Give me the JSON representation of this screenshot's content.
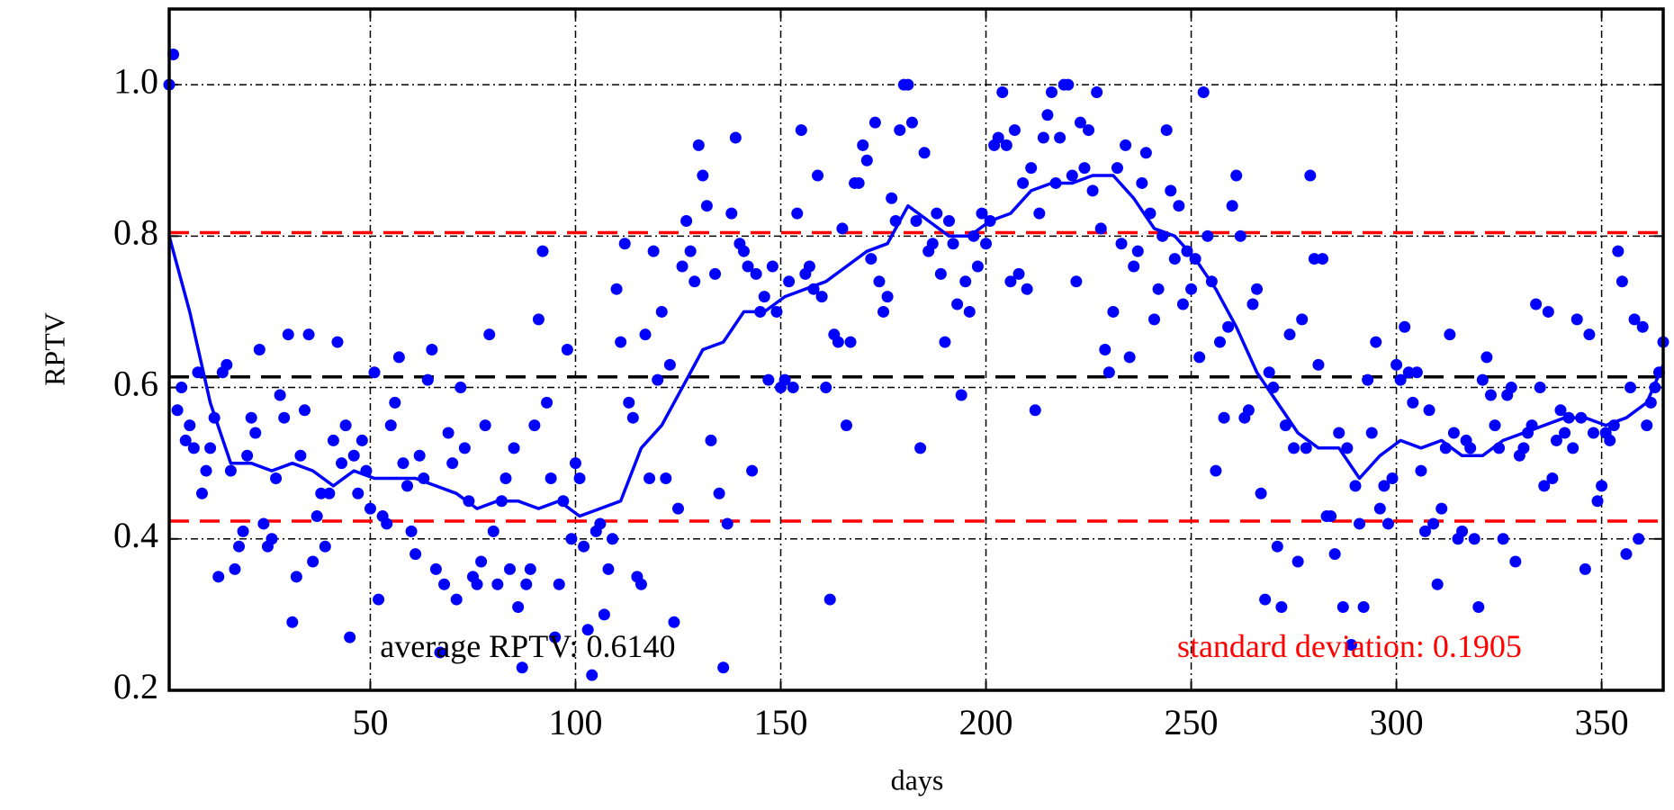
{
  "chart_data": {
    "type": "scatter",
    "xlabel": "days",
    "ylabel": "RPTV",
    "xlim": [
      1,
      365
    ],
    "ylim": [
      0.2,
      1.1
    ],
    "xticks": [
      50,
      100,
      150,
      200,
      250,
      300,
      350
    ],
    "yticks": [
      0.2,
      0.4,
      0.6,
      0.8,
      {
        "value": 1,
        "label": "1.0"
      }
    ],
    "grid": true,
    "points": {
      "color": "#0000ff",
      "x": [
        1,
        2,
        3,
        4,
        5,
        6,
        7,
        8,
        9,
        10,
        11,
        12,
        13,
        14,
        15,
        16,
        17,
        18,
        19,
        20,
        21,
        22,
        23,
        24,
        25,
        26,
        27,
        28,
        29,
        30,
        31,
        32,
        33,
        34,
        35,
        36,
        37,
        38,
        39,
        40,
        41,
        42,
        43,
        44,
        45,
        46,
        47,
        48,
        49,
        50,
        51,
        52,
        53,
        54,
        55,
        56,
        57,
        58,
        59,
        60,
        61,
        62,
        63,
        64,
        65,
        66,
        67,
        68,
        69,
        70,
        71,
        72,
        73,
        74,
        75,
        76,
        77,
        78,
        79,
        80,
        81,
        82,
        83,
        84,
        85,
        86,
        87,
        88,
        89,
        90,
        91,
        92,
        93,
        94,
        95,
        96,
        97,
        98,
        99,
        100,
        101,
        102,
        103,
        104,
        105,
        106,
        107,
        108,
        109,
        110,
        111,
        112,
        113,
        114,
        115,
        116,
        117,
        118,
        119,
        120,
        121,
        122,
        123,
        124,
        125,
        126,
        127,
        128,
        129,
        130,
        131,
        132,
        133,
        134,
        135,
        136,
        137,
        138,
        139,
        140,
        141,
        142,
        143,
        144,
        145,
        146,
        147,
        148,
        149,
        150,
        151,
        152,
        153,
        154,
        155,
        156,
        157,
        158,
        159,
        160,
        161,
        162,
        163,
        164,
        165,
        166,
        167,
        168,
        169,
        170,
        171,
        172,
        173,
        174,
        175,
        176,
        177,
        178,
        179,
        180,
        181,
        182,
        183,
        184,
        185,
        186,
        187,
        188,
        189,
        190,
        191,
        192,
        193,
        194,
        195,
        196,
        197,
        198,
        199,
        200,
        201,
        202,
        203,
        204,
        205,
        206,
        207,
        208,
        209,
        210,
        211,
        212,
        213,
        214,
        215,
        216,
        217,
        218,
        219,
        220,
        221,
        222,
        223,
        224,
        225,
        226,
        227,
        228,
        229,
        230,
        231,
        232,
        233,
        234,
        235,
        236,
        237,
        238,
        239,
        240,
        241,
        242,
        243,
        244,
        245,
        246,
        247,
        248,
        249,
        250,
        251,
        252,
        253,
        254,
        255,
        256,
        257,
        258,
        259,
        260,
        261,
        262,
        263,
        264,
        265,
        266,
        267,
        268,
        269,
        270,
        271,
        272,
        273,
        274,
        275,
        276,
        277,
        278,
        279,
        280,
        281,
        282,
        283,
        284,
        285,
        286,
        287,
        288,
        289,
        290,
        291,
        292,
        293,
        294,
        295,
        296,
        297,
        298,
        299,
        300,
        301,
        302,
        303,
        304,
        305,
        306,
        307,
        308,
        309,
        310,
        311,
        312,
        313,
        314,
        315,
        316,
        317,
        318,
        319,
        320,
        321,
        322,
        323,
        324,
        325,
        326,
        327,
        328,
        329,
        330,
        331,
        332,
        333,
        334,
        335,
        336,
        337,
        338,
        339,
        340,
        341,
        342,
        343,
        344,
        345,
        346,
        347,
        348,
        349,
        350,
        351,
        352,
        353,
        354,
        355,
        356,
        357,
        358,
        359,
        360,
        361,
        362,
        363,
        364,
        365
      ],
      "values": [
        1.0,
        1.04,
        0.57,
        0.6,
        0.53,
        0.55,
        0.52,
        0.62,
        0.46,
        0.49,
        0.52,
        0.56,
        0.35,
        0.62,
        0.63,
        0.49,
        0.36,
        0.39,
        0.41,
        0.51,
        0.56,
        0.54,
        0.65,
        0.42,
        0.39,
        0.4,
        0.48,
        0.59,
        0.56,
        0.67,
        0.29,
        0.35,
        0.51,
        0.57,
        0.67,
        0.37,
        0.43,
        0.46,
        0.39,
        0.46,
        0.53,
        0.66,
        0.5,
        0.55,
        0.27,
        0.51,
        0.46,
        0.53,
        0.49,
        0.44,
        0.62,
        0.32,
        0.43,
        0.42,
        0.55,
        0.58,
        0.64,
        0.5,
        0.47,
        0.41,
        0.38,
        0.51,
        0.48,
        0.61,
        0.65,
        0.36,
        0.25,
        0.34,
        0.54,
        0.5,
        0.32,
        0.6,
        0.52,
        0.45,
        0.35,
        0.34,
        0.37,
        0.55,
        0.67,
        0.41,
        0.34,
        0.45,
        0.48,
        0.36,
        0.52,
        0.31,
        0.23,
        0.34,
        0.36,
        0.55,
        0.69,
        0.78,
        0.58,
        0.48,
        0.27,
        0.34,
        0.45,
        0.65,
        0.4,
        0.5,
        0.48,
        0.39,
        0.28,
        0.22,
        0.41,
        0.42,
        0.3,
        0.36,
        0.4,
        0.73,
        0.66,
        0.79,
        0.58,
        0.56,
        0.35,
        0.34,
        0.67,
        0.48,
        0.78,
        0.61,
        0.7,
        0.48,
        0.63,
        0.29,
        0.44,
        0.76,
        0.82,
        0.78,
        0.74,
        0.92,
        0.88,
        0.84,
        0.53,
        0.75,
        0.46,
        0.23,
        0.42,
        0.83,
        0.93,
        0.79,
        0.78,
        0.76,
        0.49,
        0.75,
        0.7,
        0.72,
        0.61,
        0.76,
        0.7,
        0.6,
        0.61,
        0.74,
        0.6,
        0.83,
        0.94,
        0.75,
        0.76,
        0.73,
        0.88,
        0.72,
        0.6,
        0.32,
        0.67,
        0.66,
        0.81,
        0.55,
        0.66,
        0.87,
        0.87,
        0.92,
        0.9,
        0.77,
        0.95,
        0.74,
        0.7,
        0.72,
        0.85,
        0.82,
        0.94,
        1.0,
        1.0,
        0.95,
        0.82,
        0.52,
        0.91,
        0.78,
        0.79,
        0.83,
        0.75,
        0.66,
        0.82,
        0.79,
        0.71,
        0.59,
        0.74,
        0.7,
        0.8,
        0.76,
        0.83,
        0.79,
        0.82,
        0.92,
        0.93,
        0.99,
        0.92,
        0.74,
        0.94,
        0.75,
        0.87,
        0.73,
        0.89,
        0.57,
        0.83,
        0.93,
        0.96,
        0.99,
        0.87,
        0.93,
        1.0,
        1.0,
        0.88,
        0.74,
        0.95,
        0.89,
        0.94,
        0.86,
        0.99,
        0.81,
        0.65,
        0.62,
        0.7,
        0.89,
        0.79,
        0.92,
        0.64,
        0.76,
        0.78,
        0.87,
        0.91,
        0.83,
        0.69,
        0.73,
        0.8,
        0.94,
        0.86,
        0.77,
        0.84,
        0.71,
        0.78,
        0.73,
        0.77,
        0.64,
        0.99,
        0.8,
        0.74,
        0.49,
        0.66,
        0.56,
        0.68,
        0.84,
        0.88,
        0.8,
        0.56,
        0.57,
        0.71,
        0.73,
        0.46,
        0.32,
        0.62,
        0.6,
        0.39,
        0.31,
        0.55,
        0.67,
        0.52,
        0.37,
        0.69,
        0.52,
        0.88,
        0.77,
        0.63,
        0.77,
        0.43,
        0.43,
        0.38,
        0.54,
        0.31,
        0.52,
        0.26,
        0.47,
        0.42,
        0.31,
        0.61,
        0.54,
        0.66,
        0.44,
        0.47,
        0.42,
        0.48,
        0.63,
        0.61,
        0.68,
        0.62,
        0.58,
        0.62,
        0.49,
        0.41,
        0.57,
        0.42,
        0.34,
        0.44,
        0.52,
        0.67,
        0.54,
        0.4,
        0.41,
        0.53,
        0.52,
        0.4,
        0.31,
        0.61,
        0.64,
        0.59,
        0.55,
        0.52,
        0.4,
        0.59,
        0.6,
        0.37,
        0.51,
        0.52,
        0.54,
        0.55,
        0.71,
        0.6,
        0.47,
        0.7,
        0.48,
        0.53,
        0.57,
        0.54,
        0.56,
        0.52,
        0.69,
        0.56,
        0.36,
        0.67,
        0.54,
        0.45,
        0.47,
        0.54,
        0.53,
        0.55,
        0.78,
        0.74,
        0.38,
        0.6,
        0.69,
        0.4,
        0.68,
        0.55,
        0.58,
        0.6,
        0.62,
        0.66
      ]
    },
    "line": {
      "color": "#0000ff",
      "x": [
        1,
        6,
        11,
        16,
        21,
        26,
        31,
        36,
        41,
        46,
        51,
        56,
        61,
        66,
        71,
        76,
        81,
        86,
        91,
        96,
        101,
        106,
        111,
        116,
        121,
        126,
        131,
        136,
        141,
        146,
        151,
        156,
        161,
        166,
        171,
        176,
        181,
        186,
        191,
        196,
        201,
        206,
        211,
        216,
        221,
        226,
        231,
        236,
        241,
        246,
        251,
        256,
        261,
        266,
        271,
        276,
        281,
        286,
        291,
        296,
        301,
        306,
        311,
        316,
        321,
        326,
        331,
        336,
        341,
        346,
        351,
        356,
        361,
        365
      ],
      "values": [
        0.8,
        0.7,
        0.58,
        0.5,
        0.5,
        0.49,
        0.5,
        0.49,
        0.47,
        0.49,
        0.48,
        0.48,
        0.48,
        0.47,
        0.46,
        0.44,
        0.45,
        0.45,
        0.44,
        0.45,
        0.43,
        0.44,
        0.45,
        0.52,
        0.55,
        0.6,
        0.65,
        0.66,
        0.7,
        0.7,
        0.72,
        0.73,
        0.74,
        0.76,
        0.78,
        0.79,
        0.84,
        0.82,
        0.8,
        0.8,
        0.82,
        0.83,
        0.86,
        0.87,
        0.87,
        0.88,
        0.88,
        0.85,
        0.81,
        0.8,
        0.77,
        0.73,
        0.68,
        0.62,
        0.58,
        0.54,
        0.52,
        0.52,
        0.48,
        0.51,
        0.53,
        0.52,
        0.53,
        0.51,
        0.51,
        0.53,
        0.54,
        0.55,
        0.56,
        0.56,
        0.55,
        0.56,
        0.58,
        0.63
      ]
    },
    "reference_lines": [
      {
        "value": 0.614,
        "color": "#000000"
      },
      {
        "value": 0.8045,
        "color": "#ff0000"
      },
      {
        "value": 0.4235,
        "color": "#ff0000"
      }
    ],
    "annotations": [
      {
        "text": "average RPTV: 0.6140",
        "color": "#000000"
      },
      {
        "text": "standard deviation: 0.1905",
        "color": "#ff0000"
      }
    ]
  }
}
